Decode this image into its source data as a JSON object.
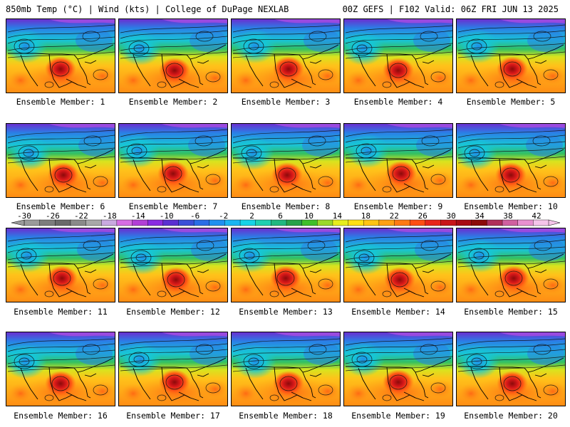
{
  "header": {
    "left": "850mb Temp (°C) | Wind (kts) | College of DuPage NEXLAB",
    "right": "00Z GEFS | F102 Valid: 06Z FRI JUN 13 2025"
  },
  "members": [
    "Ensemble Member: 1",
    "Ensemble Member: 2",
    "Ensemble Member: 3",
    "Ensemble Member: 4",
    "Ensemble Member: 5",
    "Ensemble Member: 6",
    "Ensemble Member: 7",
    "Ensemble Member: 8",
    "Ensemble Member: 9",
    "Ensemble Member: 10",
    "Ensemble Member: 11",
    "Ensemble Member: 12",
    "Ensemble Member: 13",
    "Ensemble Member: 14",
    "Ensemble Member: 15",
    "Ensemble Member: 16",
    "Ensemble Member: 17",
    "Ensemble Member: 18",
    "Ensemble Member: 19",
    "Ensemble Member: 20"
  ],
  "colorbar": {
    "labels": [
      "-30",
      "-26",
      "-22",
      "-18",
      "-14",
      "-10",
      "-6",
      "-2",
      "2",
      "6",
      "10",
      "14",
      "18",
      "22",
      "26",
      "30",
      "34",
      "38",
      "42"
    ],
    "colors": [
      "#9a9a9a",
      "#7d7d7d",
      "#6a6a6a",
      "#8a8a8a",
      "#a8a8a8",
      "#c9a9e0",
      "#d66de3",
      "#b23fd6",
      "#8a2be2",
      "#5a2fd1",
      "#3a4fd8",
      "#2a6ee6",
      "#1e90f0",
      "#19b5f2",
      "#17d3e6",
      "#1fd0b0",
      "#20b880",
      "#26a24a",
      "#3fbf2a",
      "#9bd92a",
      "#e6ee1e",
      "#ffe014",
      "#ffc414",
      "#ffa014",
      "#ff7a14",
      "#ff4e14",
      "#e8261a",
      "#c8141a",
      "#a80a14",
      "#8c0a0a",
      "#b0305a",
      "#d060a0",
      "#e890d0",
      "#f5c4ea"
    ]
  }
}
